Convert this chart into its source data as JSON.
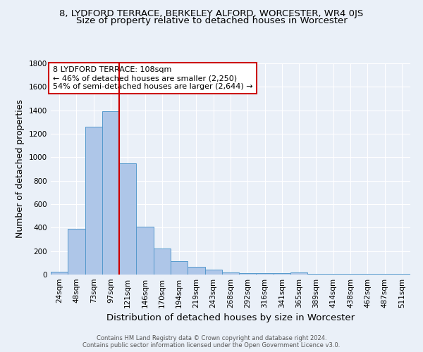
{
  "title": "8, LYDFORD TERRACE, BERKELEY ALFORD, WORCESTER, WR4 0JS",
  "subtitle": "Size of property relative to detached houses in Worcester",
  "xlabel": "Distribution of detached houses by size in Worcester",
  "ylabel": "Number of detached properties",
  "footer_line1": "Contains HM Land Registry data © Crown copyright and database right 2024.",
  "footer_line2": "Contains public sector information licensed under the Open Government Licence v3.0.",
  "bin_labels": [
    "24sqm",
    "48sqm",
    "73sqm",
    "97sqm",
    "121sqm",
    "146sqm",
    "170sqm",
    "194sqm",
    "219sqm",
    "243sqm",
    "268sqm",
    "292sqm",
    "316sqm",
    "341sqm",
    "365sqm",
    "389sqm",
    "414sqm",
    "438sqm",
    "462sqm",
    "487sqm",
    "511sqm"
  ],
  "bar_values": [
    25,
    390,
    1260,
    1390,
    950,
    410,
    225,
    115,
    65,
    42,
    20,
    10,
    10,
    10,
    20,
    5,
    5,
    5,
    5,
    5,
    5
  ],
  "bar_color": "#aec6e8",
  "bar_edge_color": "#5599cc",
  "vline_bin_index": 3.5,
  "vline_color": "#cc0000",
  "annotation_text": "8 LYDFORD TERRACE: 108sqm\n← 46% of detached houses are smaller (2,250)\n54% of semi-detached houses are larger (2,644) →",
  "annotation_box_color": "#ffffff",
  "annotation_box_edge": "#cc0000",
  "ylim": [
    0,
    1800
  ],
  "yticks": [
    0,
    200,
    400,
    600,
    800,
    1000,
    1200,
    1400,
    1600,
    1800
  ],
  "bg_color": "#eaf0f8",
  "grid_color": "#ffffff",
  "title_fontsize": 9.5,
  "subtitle_fontsize": 9.5,
  "ylabel_fontsize": 9,
  "xlabel_fontsize": 9.5,
  "tick_fontsize": 7.5,
  "footer_fontsize": 6.0,
  "annotation_fontsize": 8.0
}
